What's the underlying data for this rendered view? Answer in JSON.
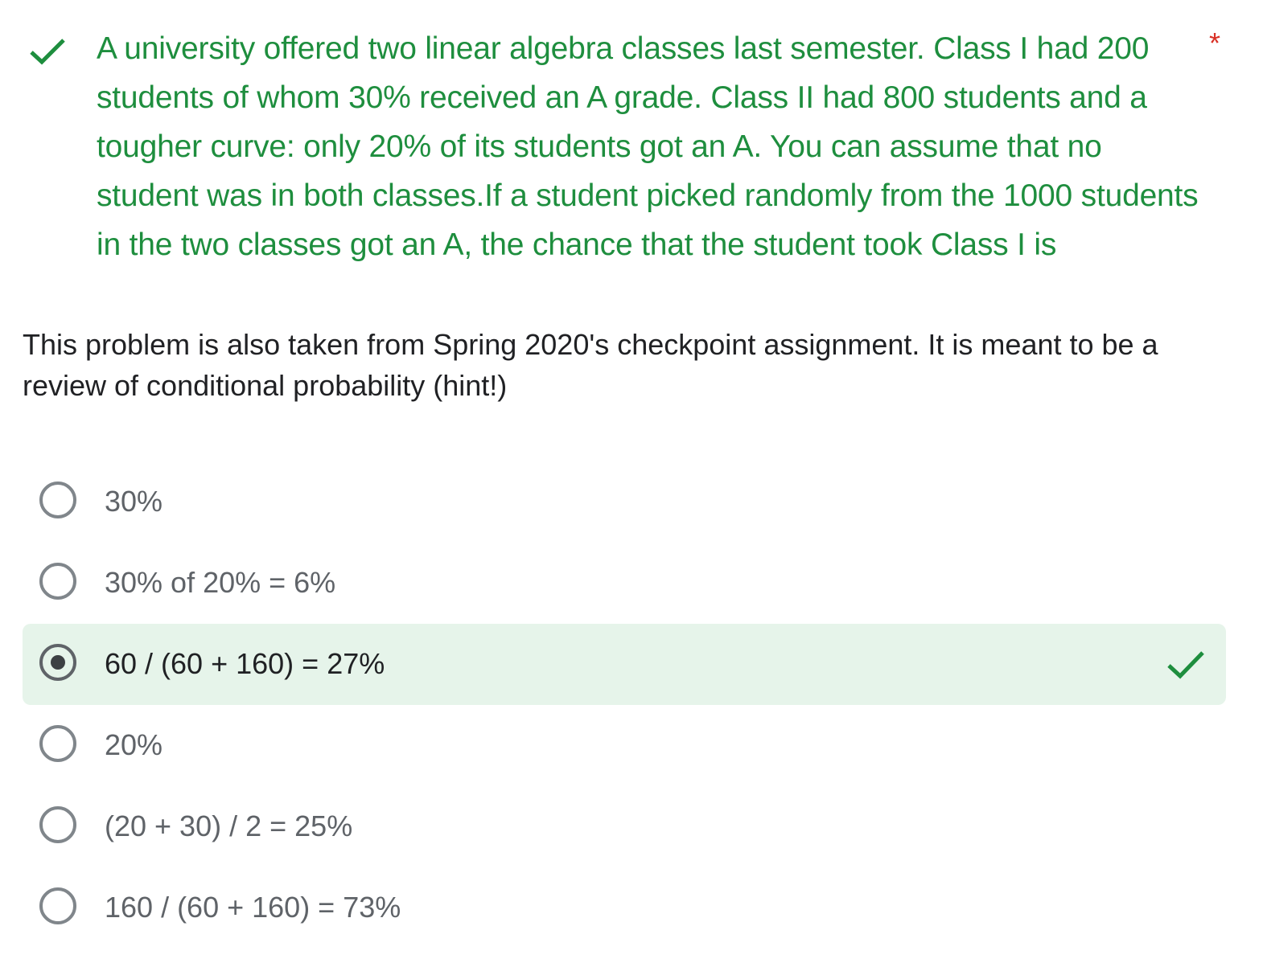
{
  "question": {
    "status_icon": "check-icon",
    "text": "A university offered two linear algebra classes last semester. Class I had 200 students of whom 30% received an A grade. Class II had 800 students and a tougher curve: only 20% of its students got an A. You can assume that no student was in both classes.If a student picked randomly from the 1000 students in the two classes got an A, the chance that the student took Class I is",
    "required_marker": "*",
    "description": "This problem is also taken from Spring 2020's checkpoint assignment. It is meant to be a review of conditional probability (hint!)"
  },
  "options": [
    {
      "label": "30%",
      "selected": false,
      "correct": false
    },
    {
      "label": "30% of 20% = 6%",
      "selected": false,
      "correct": false
    },
    {
      "label": "60 / (60 + 160) = 27%",
      "selected": true,
      "correct": true
    },
    {
      "label": "20%",
      "selected": false,
      "correct": false
    },
    {
      "label": "(20 + 30) / 2 = 25%",
      "selected": false,
      "correct": false
    },
    {
      "label": "160 / (60 + 160) = 73%",
      "selected": false,
      "correct": false
    }
  ],
  "colors": {
    "correct_green": "#1e8e3e",
    "correct_background": "#e6f4ea",
    "required_red": "#d93025",
    "text_dark": "#202124",
    "text_muted": "#5f6368"
  }
}
